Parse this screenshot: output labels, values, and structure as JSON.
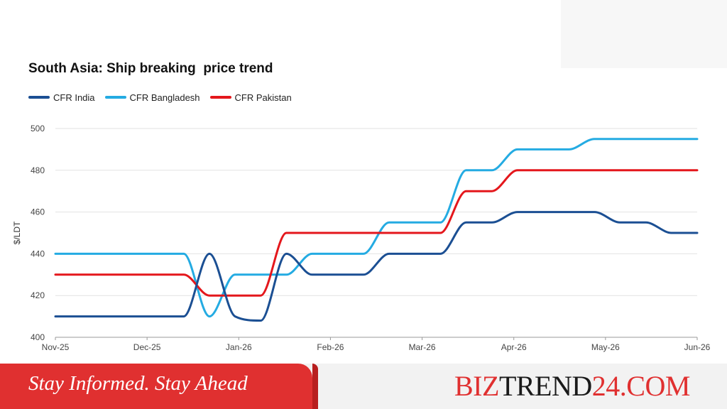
{
  "chart_data": {
    "type": "line",
    "title": "South Asia: Ship breaking  price trend",
    "ylabel": "$/LDT",
    "xlabel": "",
    "ylim": [
      400,
      500
    ],
    "yticks": [
      400,
      420,
      440,
      460,
      480,
      500
    ],
    "grid": true,
    "legend_position": "top-left",
    "x_tick_labels": [
      "Nov-25",
      "Dec-25",
      "Jan-26",
      "Feb-26",
      "Mar-26",
      "Apr-26",
      "May-26",
      "Jun-26"
    ],
    "x": [
      "Nov-25",
      "Nov-25",
      "Dec-25",
      "Dec-25",
      "Dec-25",
      "Jan-26",
      "Jan-26",
      "Jan-26",
      "Jan-26",
      "Jan-26",
      "Feb-26",
      "Feb-26",
      "Feb-26",
      "Feb-26",
      "Mar-26",
      "Mar-26",
      "Mar-26",
      "Apr-26",
      "Apr-26",
      "Apr-26",
      "Apr-26",
      "May-26",
      "May-26",
      "May-26",
      "Jun-26",
      "Jun-26"
    ],
    "series": [
      {
        "name": "CFR India",
        "color": "#1b4f93",
        "values": [
          410,
          410,
          410,
          410,
          410,
          410,
          440,
          410,
          408,
          440,
          430,
          430,
          430,
          440,
          440,
          440,
          455,
          455,
          460,
          460,
          460,
          460,
          455,
          455,
          450,
          450
        ]
      },
      {
        "name": "CFR Bangladesh",
        "color": "#24abe2",
        "values": [
          440,
          440,
          440,
          440,
          440,
          440,
          410,
          430,
          430,
          430,
          440,
          440,
          440,
          455,
          455,
          455,
          480,
          480,
          490,
          490,
          490,
          495,
          495,
          495,
          495,
          495
        ]
      },
      {
        "name": "CFR Pakistan",
        "color": "#e4171c",
        "values": [
          430,
          430,
          430,
          430,
          430,
          430,
          420,
          420,
          420,
          450,
          450,
          450,
          450,
          450,
          450,
          450,
          470,
          470,
          480,
          480,
          480,
          480,
          480,
          480,
          480,
          480
        ]
      }
    ]
  },
  "banner": {
    "tagline": "Stay Informed. Stay Ahead",
    "brand_part1": "BIZ",
    "brand_part2": "TREND",
    "brand_part3": "24.COM",
    "brand_color_red": "#e03030",
    "brand_color_dark": "#1a1a1a"
  }
}
